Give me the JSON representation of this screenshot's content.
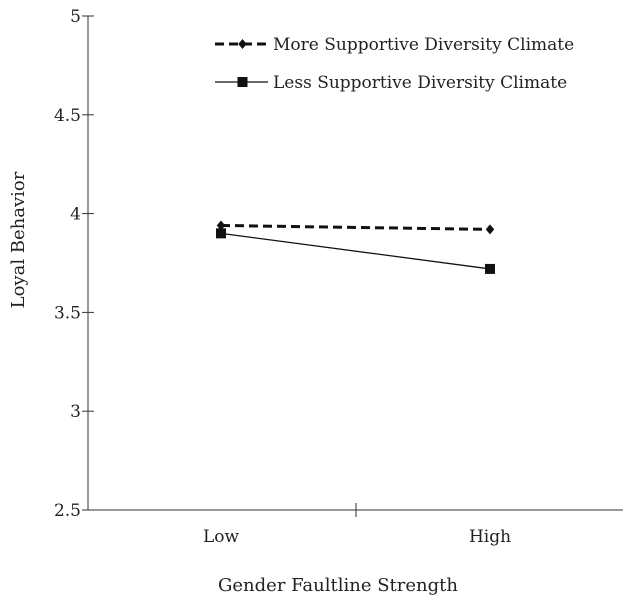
{
  "chart_data": {
    "type": "line",
    "xlabel": "Gender Faultline Strength",
    "ylabel": "Loyal Behavior",
    "categories": [
      "Low",
      "High"
    ],
    "ylim": [
      2.5,
      5
    ],
    "yticks": [
      2.5,
      3,
      3.5,
      4,
      4.5,
      5
    ],
    "ytick_labels": [
      "2.5",
      "3",
      "3.5",
      "4",
      "4.5",
      "5"
    ],
    "grid": false,
    "legend_position": "top-right",
    "series": [
      {
        "name": "More Supportive Diversity Climate",
        "values": [
          3.94,
          3.92
        ],
        "line_style": "dashed",
        "marker": "diamond",
        "color": "#111111"
      },
      {
        "name": "Less Supportive Diversity Climate",
        "values": [
          3.9,
          3.72
        ],
        "line_style": "solid",
        "marker": "square",
        "color": "#111111"
      }
    ]
  }
}
